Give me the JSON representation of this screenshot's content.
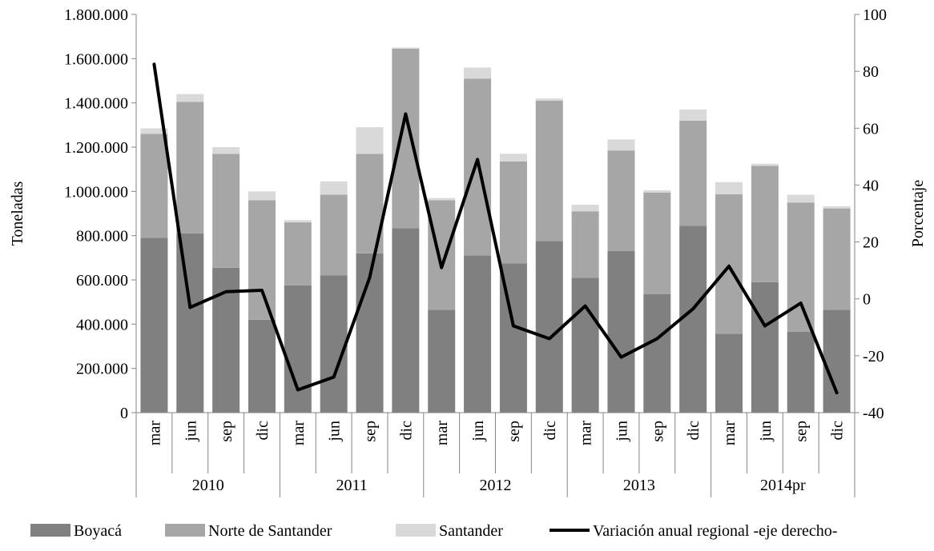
{
  "chart_data": {
    "type": "bar",
    "stacked": true,
    "categories": [
      "mar",
      "jun",
      "sep",
      "dic",
      "mar",
      "jun",
      "sep",
      "dic",
      "mar",
      "jun",
      "sep",
      "dic",
      "mar",
      "jun",
      "sep",
      "dic",
      "mar",
      "jun",
      "sep",
      "dic"
    ],
    "groups": [
      {
        "label": "2010",
        "count": 4
      },
      {
        "label": "2011",
        "count": 4
      },
      {
        "label": "2012",
        "count": 4
      },
      {
        "label": "2013",
        "count": 4
      },
      {
        "label": "2014pr",
        "count": 4
      }
    ],
    "series": [
      {
        "name": "Boyacá",
        "color": "#808080",
        "axis": "left",
        "values": [
          790000,
          810000,
          655000,
          420000,
          575000,
          620000,
          720000,
          833000,
          465000,
          710000,
          675000,
          775000,
          610000,
          730000,
          535000,
          845000,
          357000,
          590000,
          365000,
          465000
        ]
      },
      {
        "name": "Norte de Santander",
        "color": "#a6a6a6",
        "axis": "left",
        "values": [
          470000,
          595000,
          515000,
          540000,
          285000,
          365000,
          450000,
          812000,
          495000,
          800000,
          460000,
          635000,
          300000,
          455000,
          460000,
          475000,
          630000,
          525000,
          585000,
          458000
        ]
      },
      {
        "name": "Santander",
        "color": "#d9d9d9",
        "axis": "left",
        "values": [
          25000,
          35000,
          30000,
          40000,
          10000,
          60000,
          120000,
          5000,
          10000,
          50000,
          35000,
          10000,
          30000,
          50000,
          10000,
          50000,
          55000,
          10000,
          35000,
          10000
        ]
      }
    ],
    "line": {
      "name": "Variación anual regional -eje derecho-",
      "color": "#000000",
      "axis": "right",
      "values": [
        82.5,
        -3,
        2.5,
        3,
        -32,
        -27.5,
        7.5,
        65,
        11,
        49,
        -9.5,
        -14,
        -2.5,
        -20.5,
        -14,
        -3.5,
        11.5,
        -9.5,
        -1.5,
        -33
      ]
    },
    "y_left": {
      "label": "Toneladas",
      "range": [
        0,
        1800000
      ],
      "ticks": [
        0,
        200000,
        400000,
        600000,
        800000,
        1000000,
        1200000,
        1400000,
        1600000,
        1800000
      ],
      "tick_labels": [
        "0",
        "200.000",
        "400.000",
        "600.000",
        "800.000",
        "1.000.000",
        "1.200.000",
        "1.400.000",
        "1.600.000",
        "1.800.000"
      ]
    },
    "y_right": {
      "label": "Porcentaje",
      "range": [
        -40,
        100
      ],
      "ticks": [
        -40,
        -20,
        0,
        20,
        40,
        60,
        80,
        100
      ],
      "tick_labels": [
        "-40",
        "-20",
        "0",
        "20",
        "40",
        "60",
        "80",
        "100"
      ]
    },
    "legend": {
      "position": "bottom",
      "items": [
        "Boyacá",
        "Norte de Santander",
        "Santander",
        "Variación anual regional -eje derecho-"
      ]
    },
    "grid": false
  }
}
